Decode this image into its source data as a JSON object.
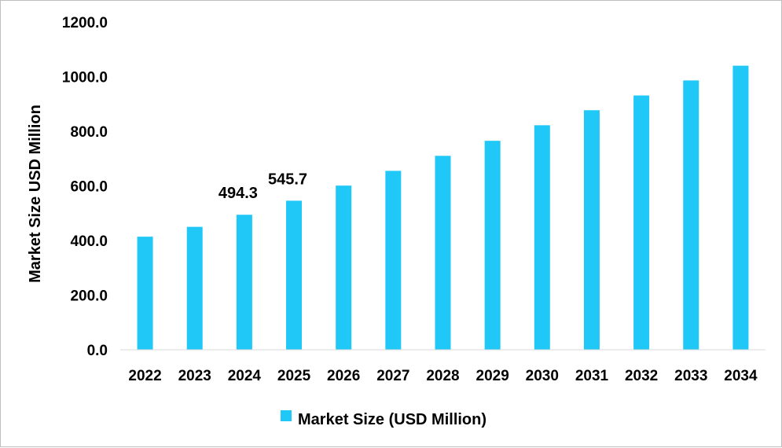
{
  "chart_data": {
    "type": "bar",
    "categories": [
      "2022",
      "2023",
      "2024",
      "2025",
      "2026",
      "2027",
      "2028",
      "2029",
      "2030",
      "2031",
      "2032",
      "2033",
      "2034"
    ],
    "series": [
      {
        "name": "Market Size (USD Million)",
        "values": [
          414.0,
          450.0,
          494.3,
          545.7,
          601.0,
          655.0,
          710.0,
          765.0,
          822.0,
          877.0,
          931.0,
          986.0,
          1040.0
        ],
        "color": "#1FC8F7"
      }
    ],
    "data_labels": [
      {
        "category": "2024",
        "text": "494.3"
      },
      {
        "category": "2025",
        "text": "545.7"
      }
    ],
    "ylabel": "Market Size USD Million",
    "xlabel": "",
    "ylim": [
      0,
      1200
    ],
    "yticks": [
      "0.0",
      "200.0",
      "400.0",
      "600.0",
      "800.0",
      "1000.0",
      "1200.0"
    ],
    "ytick_values": [
      0,
      200,
      400,
      600,
      800,
      1000,
      1200
    ],
    "grid": false,
    "legend_position": "bottom",
    "axis_color": "#d9d9d9"
  }
}
